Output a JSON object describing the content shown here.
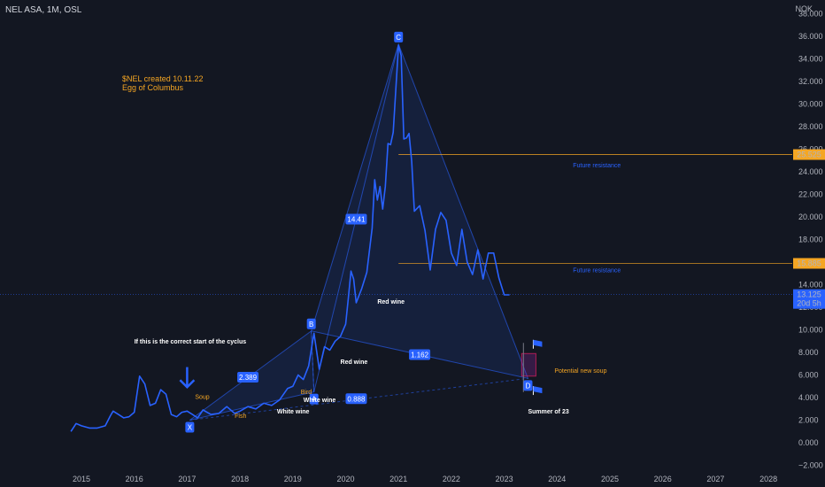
{
  "header": {
    "symbol_line": "NEL ASA, 1M, OSL",
    "currency": "NOK"
  },
  "note": {
    "line1": "$NEL created 10.11.22",
    "line2": "Egg of Columbus"
  },
  "colors": {
    "background": "#131722",
    "price_line": "#2962ff",
    "pattern_fill": "#2962ff",
    "orange": "#f5a623",
    "text": "#b2b5be",
    "current_price_tag": "#2962ff",
    "resistance_tag": "#f5a623"
  },
  "chart_data": {
    "type": "line",
    "x_axis_labels": [
      "2015",
      "2016",
      "2017",
      "2018",
      "2019",
      "2020",
      "2021",
      "2022",
      "2023",
      "2024",
      "2025",
      "2026",
      "2027",
      "2028"
    ],
    "y_ticks": [
      -2,
      0,
      2,
      4,
      6,
      8,
      10,
      12,
      14,
      16,
      18,
      20,
      22,
      24,
      26,
      28,
      30,
      32,
      34,
      36,
      38
    ],
    "y_tick_labels": [
      "−2.000",
      "0.000",
      "2.000",
      "4.000",
      "6.000",
      "8.000",
      "10.000",
      "12.000",
      "14.000",
      "16.000",
      "18.000",
      "20.000",
      "22.000",
      "24.000",
      "26.000",
      "28.000",
      "30.000",
      "32.000",
      "34.000",
      "36.000",
      "38.000"
    ],
    "ylim": [
      -2.2,
      38.8
    ],
    "xlim": [
      2014.6,
      2028.4
    ],
    "series": [
      {
        "x": [
          2014.8,
          2014.9,
          2015.0,
          2015.15,
          2015.3,
          2015.45,
          2015.55,
          2015.6,
          2015.7,
          2015.8,
          2015.9,
          2016.0,
          2016.1,
          2016.2,
          2016.3,
          2016.4,
          2016.5,
          2016.6,
          2016.7,
          2016.8,
          2016.9,
          2017.0,
          2017.1,
          2017.2,
          2017.3,
          2017.45,
          2017.6,
          2017.75,
          2017.9,
          2018.0,
          2018.15,
          2018.3,
          2018.45,
          2018.6,
          2018.75,
          2018.9,
          2019.0,
          2019.1,
          2019.2,
          2019.3,
          2019.4,
          2019.5,
          2019.6,
          2019.7,
          2019.8,
          2019.9,
          2020.0,
          2020.05,
          2020.1,
          2020.15,
          2020.2,
          2020.3,
          2020.4,
          2020.5,
          2020.55,
          2020.6,
          2020.65,
          2020.7,
          2020.75,
          2020.8,
          2020.85,
          2020.9,
          2021.0,
          2021.05,
          2021.1,
          2021.15,
          2021.2,
          2021.25,
          2021.3,
          2021.4,
          2021.5,
          2021.6,
          2021.7,
          2021.8,
          2021.9,
          2022.0,
          2022.1,
          2022.2,
          2022.3,
          2022.4,
          2022.5,
          2022.6,
          2022.7,
          2022.8,
          2022.9,
          2023.0,
          2023.1
        ],
        "values": [
          1.0,
          1.7,
          1.5,
          1.3,
          1.3,
          1.5,
          2.4,
          2.8,
          2.5,
          2.2,
          2.3,
          2.7,
          5.9,
          5.2,
          3.3,
          3.5,
          4.7,
          4.3,
          2.5,
          2.3,
          2.7,
          2.8,
          2.5,
          2.2,
          2.9,
          2.5,
          2.6,
          3.2,
          2.6,
          2.8,
          3.2,
          3.0,
          3.5,
          3.3,
          3.8,
          4.8,
          5.0,
          6.0,
          5.6,
          6.8,
          9.7,
          6.5,
          8.5,
          8.2,
          9.0,
          9.4,
          10.5,
          12.8,
          15.2,
          14.5,
          12.4,
          13.6,
          15.1,
          19.0,
          23.3,
          21.5,
          22.7,
          20.7,
          22.7,
          26.5,
          26.4,
          27.5,
          35.2,
          34.3,
          26.9,
          27.0,
          27.4,
          24.9,
          20.5,
          21.0,
          18.8,
          15.3,
          18.9,
          20.4,
          19.7,
          16.8,
          15.7,
          18.9,
          16.0,
          14.9,
          17.1,
          14.5,
          16.8,
          16.8,
          14.6,
          13.1,
          13.1
        ]
      }
    ],
    "harmonic_points": [
      {
        "label": "X",
        "x": 2017.05,
        "y": 2.0
      },
      {
        "label": "A",
        "x": 2019.4,
        "y": 4.5
      },
      {
        "label": "B",
        "x": 2019.35,
        "y": 9.9
      },
      {
        "label": "C",
        "x": 2021.0,
        "y": 35.3
      },
      {
        "label": "D",
        "x": 2023.45,
        "y": 5.7
      }
    ],
    "ratio_labels": [
      {
        "text": "2.389",
        "x": 2018.15,
        "y": 5.8
      },
      {
        "text": "14.41",
        "x": 2020.2,
        "y": 19.8
      },
      {
        "text": "1.162",
        "x": 2021.4,
        "y": 7.8
      },
      {
        "text": "0.888",
        "x": 2020.2,
        "y": 3.9
      }
    ],
    "annotations": [
      {
        "text": "If this is the correct start of the cyclus",
        "x": 2016.0,
        "y": 8.8,
        "color": "white"
      },
      {
        "text": "Soup",
        "x": 2017.15,
        "y": 3.9,
        "color": "orange"
      },
      {
        "text": "Fish",
        "x": 2017.9,
        "y": 2.2,
        "color": "orange"
      },
      {
        "text": "White wine",
        "x": 2018.7,
        "y": 2.6,
        "color": "white"
      },
      {
        "text": "White wine",
        "x": 2019.2,
        "y": 3.6,
        "color": "white"
      },
      {
        "text": "Bird",
        "x": 2019.15,
        "y": 4.3,
        "color": "orange"
      },
      {
        "text": "Red wine",
        "x": 2019.9,
        "y": 7.0,
        "color": "white"
      },
      {
        "text": "Red wine",
        "x": 2020.6,
        "y": 12.3,
        "color": "white"
      },
      {
        "text": "Potential new soup",
        "x": 2023.95,
        "y": 6.2,
        "color": "orange"
      },
      {
        "text": "Summer of 23",
        "x": 2023.45,
        "y": 2.6,
        "color": "white"
      },
      {
        "text": "Future resistance",
        "x": 2024.3,
        "y": 24.4,
        "color": "blue"
      },
      {
        "text": "Future resistance",
        "x": 2024.3,
        "y": 15.1,
        "color": "blue"
      }
    ],
    "resistance_levels": [
      {
        "value": 25.525,
        "label": "25.525",
        "x_start": 2021.0
      },
      {
        "value": 15.885,
        "label": "15.885",
        "x_start": 2021.0
      }
    ],
    "current_price": {
      "value": 13.125,
      "label": "13.125",
      "sub": "20d 5h"
    },
    "potential_box": {
      "x_start": 2023.33,
      "x_end": 2023.6,
      "y_low": 5.9,
      "y_high": 7.9
    },
    "down_arrow": {
      "x": 2017.0,
      "y_top": 6.7,
      "y_bottom": 5.0
    },
    "flags": [
      {
        "x": 2023.55,
        "y": 8.8
      },
      {
        "x": 2023.55,
        "y": 4.7
      }
    ]
  }
}
